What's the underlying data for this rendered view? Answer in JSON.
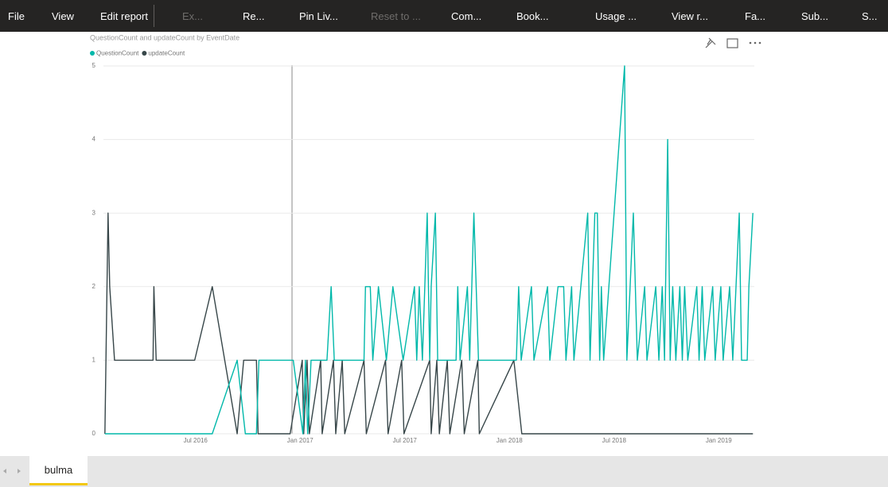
{
  "toolbar": {
    "items": [
      "File",
      "View",
      "Edit report",
      "Ex...",
      "Re...",
      "Pin Liv...",
      "Reset to ...",
      "Com...",
      "Book...",
      "Usage ...",
      "View r...",
      "Fa...",
      "Sub...",
      "S..."
    ]
  },
  "tabs": [
    "bulma"
  ],
  "chart_data": {
    "type": "line",
    "title": "QuestionCount and updateCount by EventDate",
    "xlim": [
      2016.06,
      2019.17
    ],
    "ylim": [
      0,
      5
    ],
    "yticks": [
      0,
      1,
      2,
      3,
      4,
      5
    ],
    "xticks": [
      {
        "value": 2016.5,
        "label": "Jul 2016"
      },
      {
        "value": 2017.0,
        "label": "Jan 2017"
      },
      {
        "value": 2017.5,
        "label": "Jul 2017"
      },
      {
        "value": 2018.0,
        "label": "Jan 2018"
      },
      {
        "value": 2018.5,
        "label": "Jul 2018"
      },
      {
        "value": 2019.0,
        "label": "Jan 2019"
      }
    ],
    "grid": true,
    "legend": "top-left",
    "series": [
      {
        "name": "QuestionCount",
        "color": "#01b8aa",
        "x": [
          2016.067,
          2016.58,
          2016.699,
          2016.738,
          2016.791,
          2016.803,
          2016.952,
          2016.967,
          2017.013,
          2017.025,
          2017.036,
          2017.052,
          2017.128,
          2017.148,
          2017.163,
          2017.305,
          2017.312,
          2017.335,
          2017.347,
          2017.374,
          2017.412,
          2017.443,
          2017.492,
          2017.546,
          2017.557,
          2017.569,
          2017.584,
          2017.607,
          2017.619,
          2017.626,
          2017.646,
          2017.657,
          2017.745,
          2017.753,
          2017.764,
          2017.799,
          2017.81,
          2017.83,
          2017.841,
          2017.852,
          2018.033,
          2018.044,
          2018.056,
          2018.105,
          2018.117,
          2018.182,
          2018.193,
          2018.232,
          2018.259,
          2018.27,
          2018.297,
          2018.308,
          2018.374,
          2018.385,
          2018.408,
          2018.42,
          2018.431,
          2018.439,
          2018.45,
          2018.55,
          2018.561,
          2018.592,
          2018.611,
          2018.646,
          2018.657,
          2018.699,
          2018.714,
          2018.73,
          2018.741,
          2018.756,
          2018.768,
          2018.78,
          2018.795,
          2018.814,
          2018.826,
          2018.837,
          2018.852,
          2018.895,
          2018.906,
          2018.921,
          2018.933,
          2018.971,
          2018.983,
          2019.01,
          2019.021,
          2019.052,
          2019.067,
          2019.098,
          2019.109,
          2019.136,
          2019.144,
          2019.163
        ],
        "values": [
          0,
          0,
          1,
          0,
          0,
          1,
          1,
          1,
          0,
          1,
          0,
          1,
          1,
          2,
          1,
          1,
          2,
          2,
          1,
          2,
          1,
          2,
          1,
          2,
          1,
          2,
          1,
          3,
          1,
          2,
          3,
          1,
          1,
          2,
          1,
          2,
          1,
          3,
          2,
          1,
          1,
          2,
          1,
          2,
          1,
          2,
          1,
          2,
          2,
          1,
          2,
          1,
          3,
          1,
          3,
          3,
          1,
          2,
          1,
          5,
          1,
          3,
          1,
          2,
          1,
          2,
          1,
          2,
          1,
          4,
          1,
          2,
          1,
          2,
          1,
          2,
          1,
          2,
          1,
          2,
          1,
          2,
          1,
          2,
          1,
          2,
          1,
          3,
          1,
          1,
          2,
          3
        ]
      },
      {
        "name": "updateCount",
        "color": "#374649",
        "x": [
          2016.067,
          2016.082,
          2016.09,
          2016.113,
          2016.297,
          2016.301,
          2016.312,
          2016.496,
          2016.58,
          2016.699,
          2016.73,
          2016.791,
          2016.799,
          2016.952,
          2017.01,
          2017.017,
          2017.033,
          2017.044,
          2017.098,
          2017.105,
          2017.159,
          2017.17,
          2017.201,
          2017.213,
          2017.305,
          2017.316,
          2017.408,
          2017.42,
          2017.485,
          2017.496,
          2017.619,
          2017.626,
          2017.653,
          2017.665,
          2017.703,
          2017.715,
          2017.772,
          2017.784,
          2017.849,
          2017.856,
          2018.021,
          2018.059,
          2019.163
        ],
        "values": [
          0,
          3,
          2,
          1,
          1,
          2,
          1,
          1,
          2,
          0,
          1,
          1,
          0,
          0,
          1,
          0,
          1,
          0,
          1,
          0,
          1,
          0,
          1,
          0,
          1,
          0,
          1,
          0,
          1,
          0,
          1,
          0,
          1,
          0,
          1,
          0,
          1,
          0,
          1,
          0,
          1,
          0,
          0
        ]
      }
    ]
  }
}
